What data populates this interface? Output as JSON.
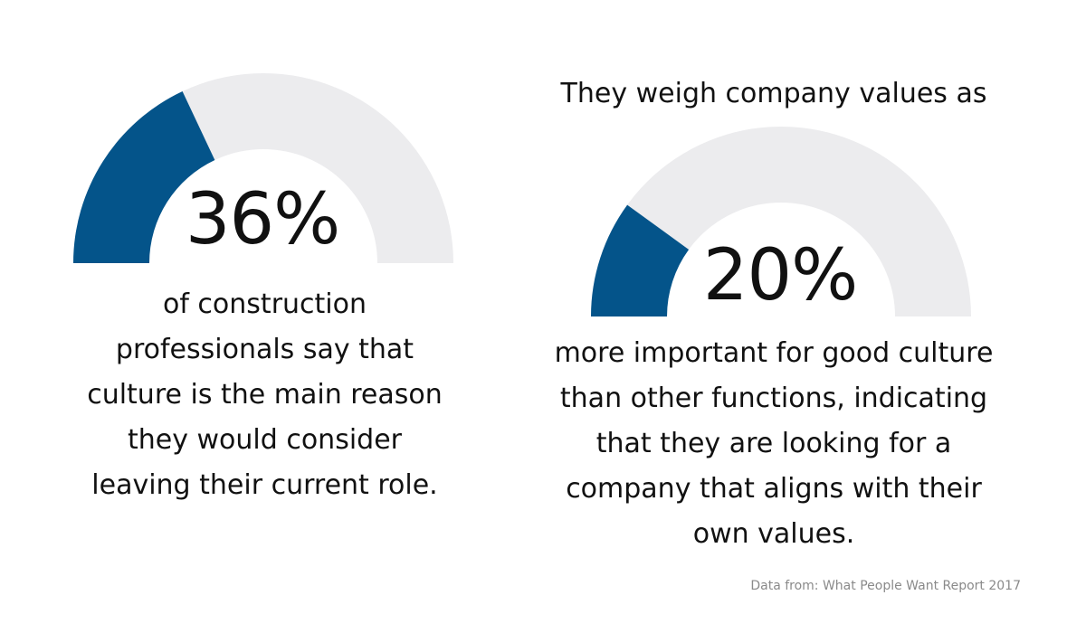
{
  "chart_data": [
    {
      "type": "gauge",
      "value": 36,
      "max": 100,
      "value_label": "36%",
      "caption": "of construction professionals say that culture is the main reason they would consider leaving their current role."
    },
    {
      "type": "gauge",
      "value": 20,
      "max": 100,
      "value_label": "20%",
      "heading": "They weigh company values as",
      "caption": "more important for good culture than other functions, indicating that they are looking for a company that aligns with their own values."
    }
  ],
  "colors": {
    "fill": "#04548a",
    "track": "#ececee",
    "text": "#111111",
    "note": "#8a8a8a"
  },
  "source_note": "Data from: What People Want Report 2017"
}
